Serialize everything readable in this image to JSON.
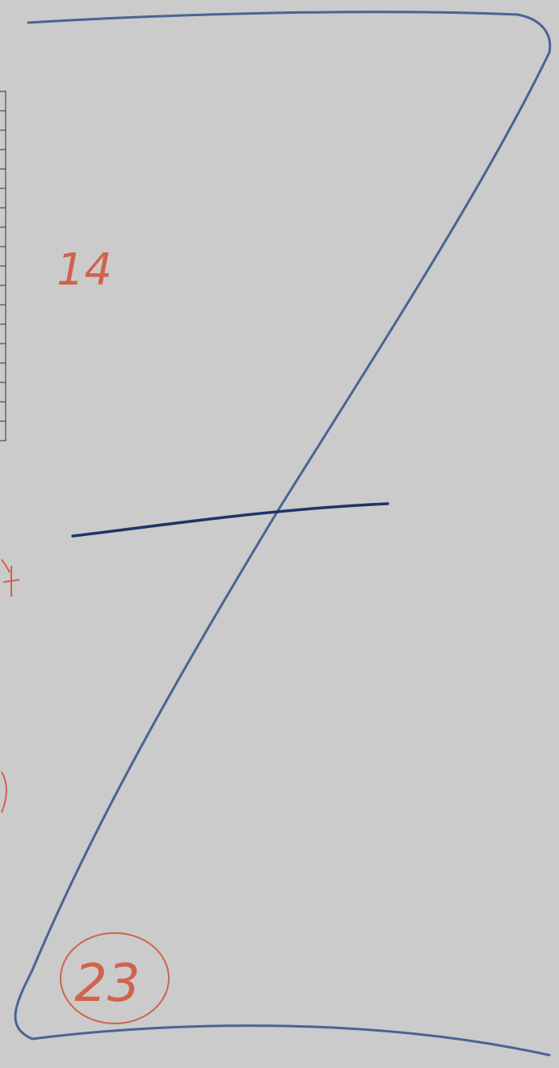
{
  "annotations": {
    "top_mark": "14",
    "circled_mark": "23"
  }
}
